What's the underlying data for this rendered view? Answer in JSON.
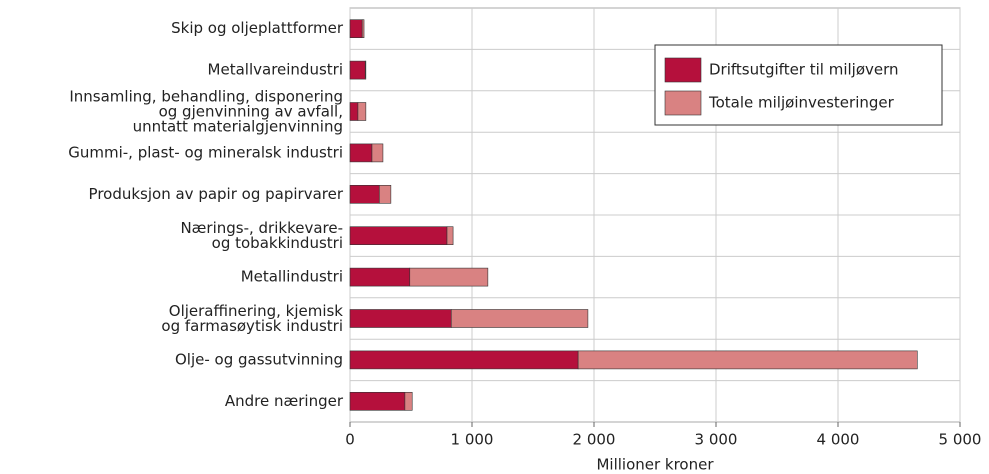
{
  "chart_data": {
    "type": "stacked-barh",
    "categories": [
      "Skip og oljeplattformer",
      "Metallvareindustri",
      "Innsamling, behandling, disponering\nog gjenvinning av avfall,\nunntatt materialgjenvinning",
      "Gummi-, plast- og mineralsk industri",
      "Produksjon av papir og papirvarer",
      "Nærings-, drikkevare-\nog tobakkindustri",
      "Metallindustri",
      "Oljeraffinering, kjemisk\nog farmasøytisk industri",
      "Olje- og gassutvinning",
      "Andre næringer"
    ],
    "series": [
      {
        "name": "Driftsutgifter til miljøvern",
        "color": "#b5103c",
        "values": [
          100,
          125,
          65,
          180,
          240,
          795,
          490,
          830,
          1870,
          450
        ]
      },
      {
        "name": "Totale miljøinvesteringer",
        "color": "#d98282",
        "values": [
          15,
          5,
          65,
          90,
          95,
          50,
          640,
          1120,
          2780,
          60
        ]
      }
    ],
    "xlabel": "Millioner kroner",
    "xlim": [
      0,
      5000
    ],
    "xticks": [
      0,
      {
        "value": 1000,
        "label": "1 000"
      },
      {
        "value": 2000,
        "label": "2 000"
      },
      {
        "value": 3000,
        "label": "3 000"
      },
      {
        "value": 4000,
        "label": "4 000"
      },
      {
        "value": 5000,
        "label": "5 000"
      }
    ],
    "grid": true,
    "legend": "upper right"
  }
}
